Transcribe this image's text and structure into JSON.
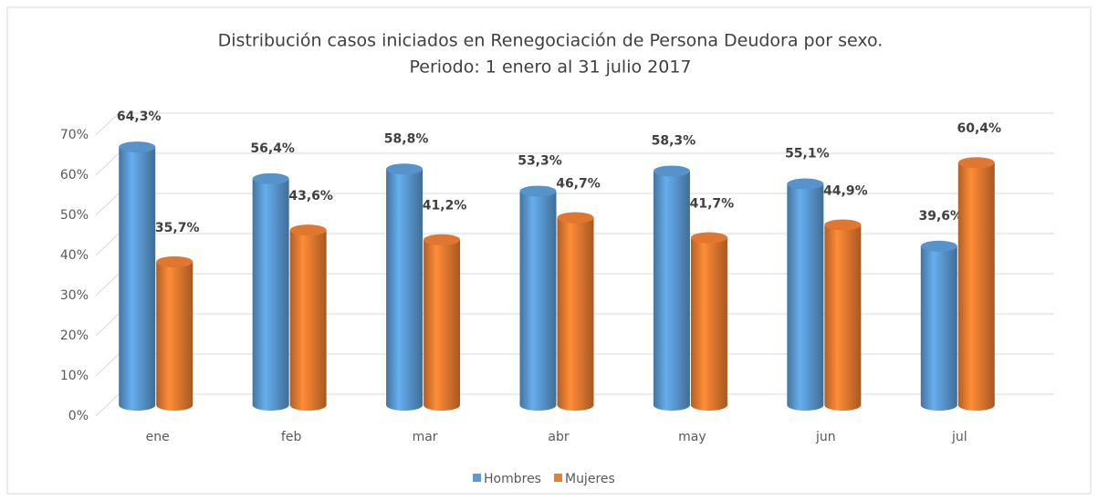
{
  "chart_data": {
    "type": "bar3d",
    "title": "Distribución casos iniciados en Renegociación de Persona Deudora por sexo.",
    "subtitle": "Periodo: 1 enero al 31 julio 2017",
    "categories": [
      "ene",
      "feb",
      "mar",
      "abr",
      "may",
      "jun",
      "jul"
    ],
    "series": [
      {
        "name": "Hombres",
        "color": "#5b9bd5",
        "values": [
          64.3,
          56.4,
          58.8,
          53.3,
          58.3,
          55.1,
          39.6
        ],
        "value_labels": [
          "64,3%",
          "56,4%",
          "58,8%",
          "53,3%",
          "58,3%",
          "55,1%",
          "39,6%"
        ]
      },
      {
        "name": "Mujeres",
        "color": "#ed7d31",
        "values": [
          35.7,
          43.6,
          41.2,
          46.7,
          41.7,
          44.9,
          60.4
        ],
        "value_labels": [
          "35,7%",
          "43,6%",
          "41,2%",
          "46,7%",
          "41,7%",
          "44,9%",
          "60,4%"
        ]
      }
    ],
    "ylim": [
      0,
      70
    ],
    "yticks": [
      {
        "value": 0,
        "label": "0%"
      },
      {
        "value": 10,
        "label": "10%"
      },
      {
        "value": 20,
        "label": "20%"
      },
      {
        "value": 30,
        "label": "30%"
      },
      {
        "value": 40,
        "label": "40%"
      },
      {
        "value": 50,
        "label": "50%"
      },
      {
        "value": 60,
        "label": "60%"
      },
      {
        "value": 70,
        "label": "70%"
      }
    ],
    "grid": true,
    "legend": "bottom"
  }
}
